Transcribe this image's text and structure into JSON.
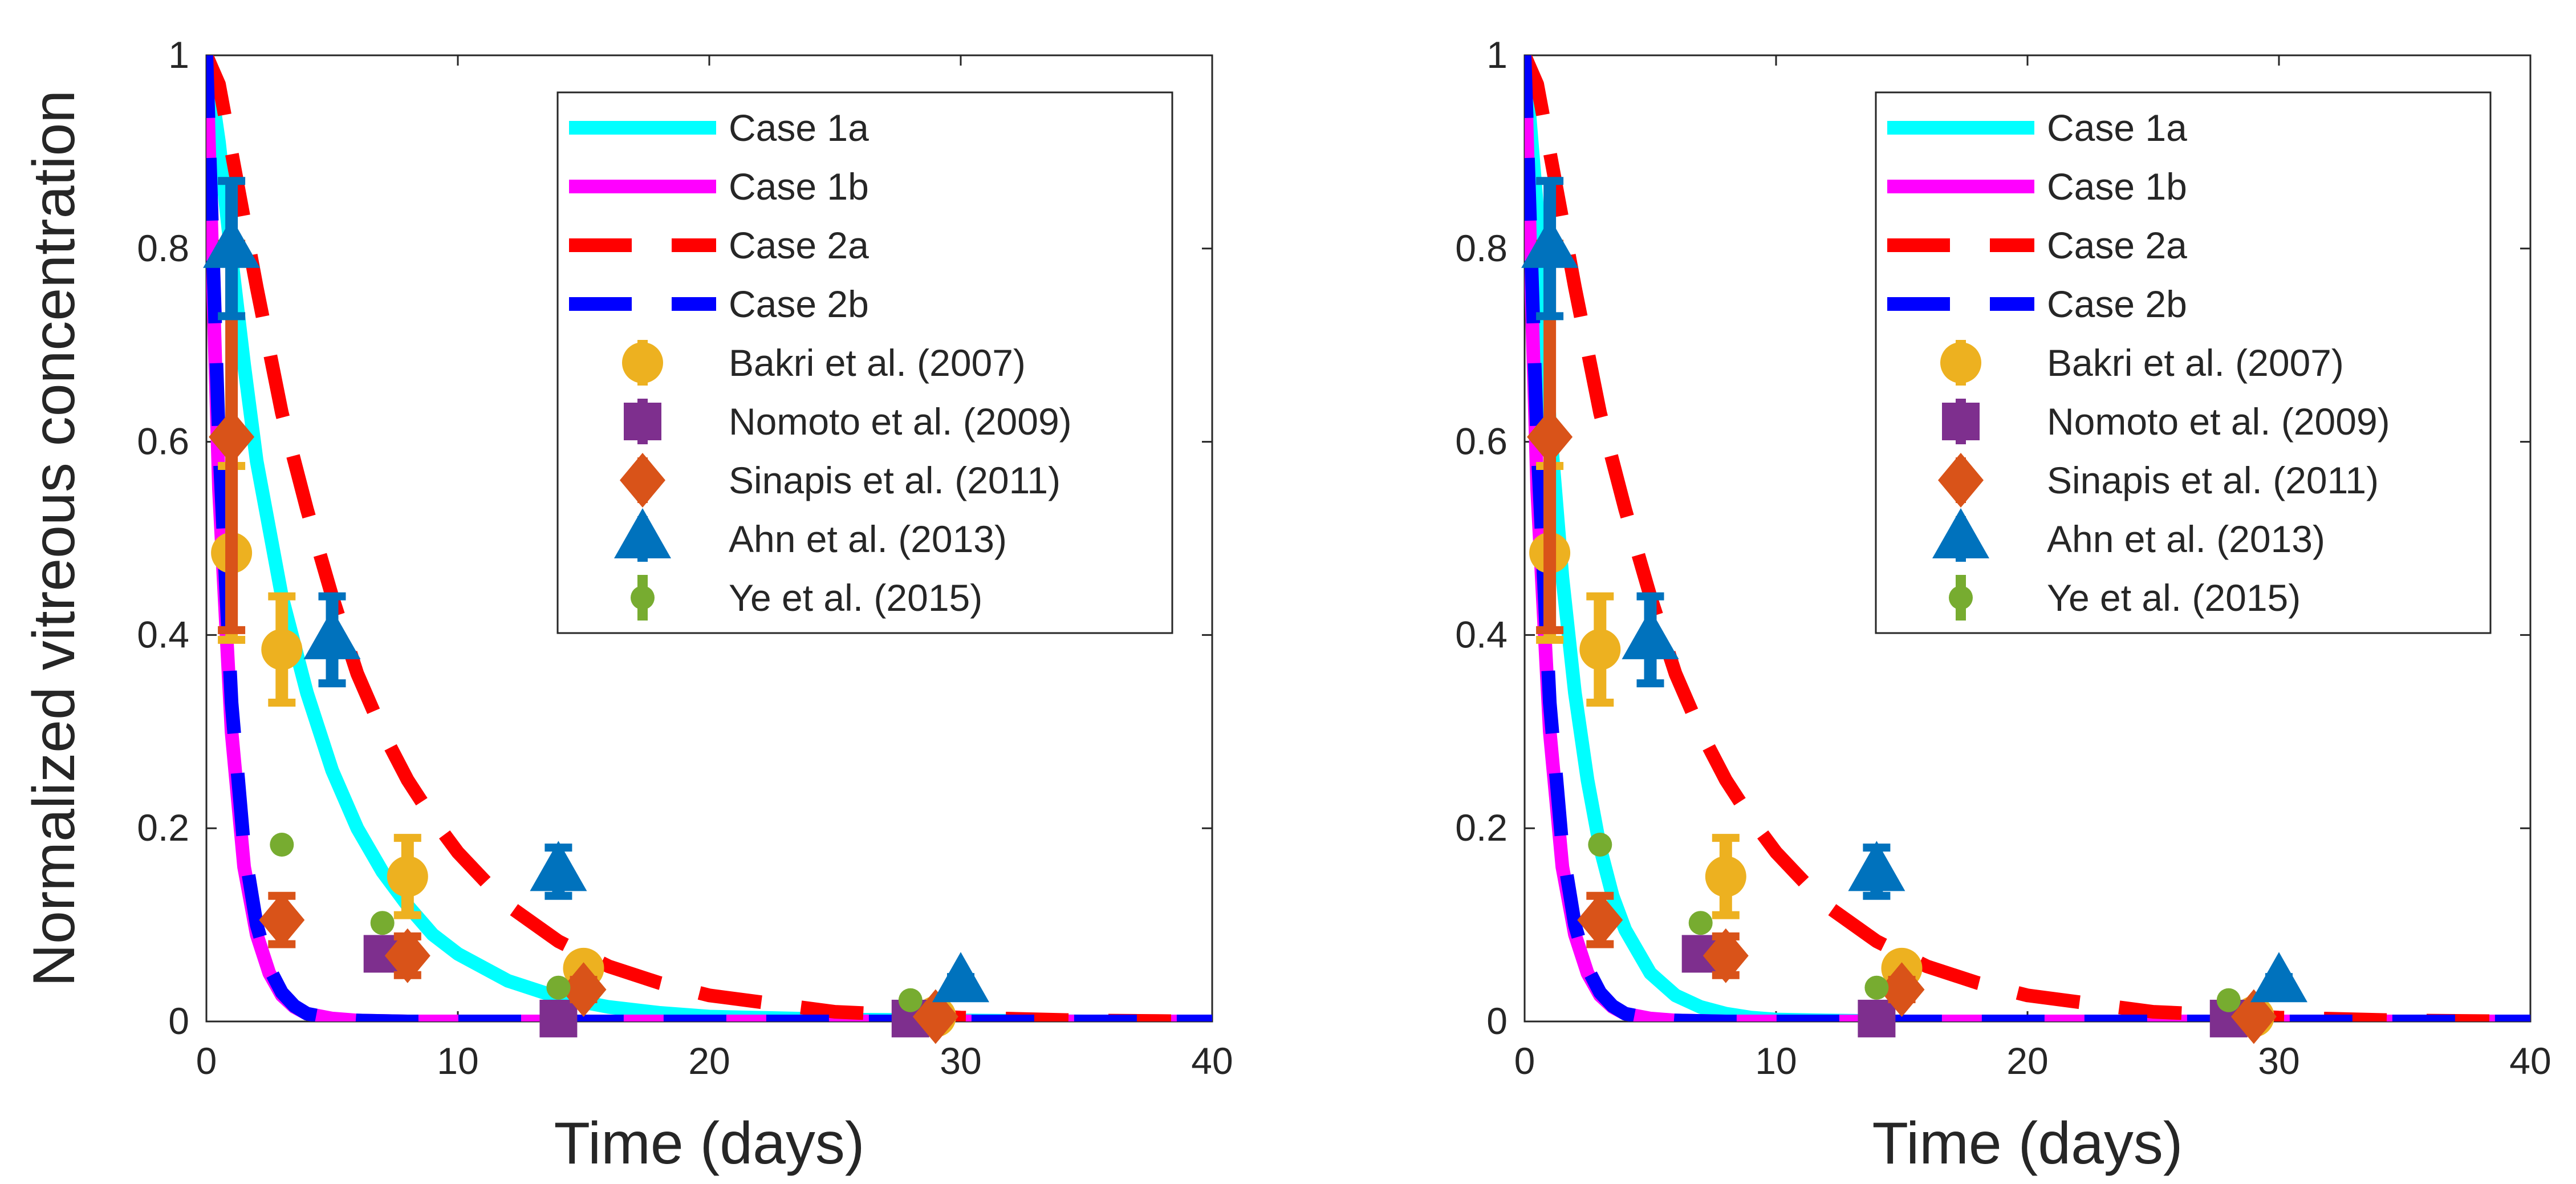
{
  "chart_data": [
    {
      "type": "line",
      "title": "",
      "xlabel": "Time (days)",
      "ylabel": "Normalized vitreous concentration",
      "xlim": [
        0,
        40
      ],
      "ylim": [
        0,
        1
      ],
      "xticks": [
        0,
        10,
        20,
        30,
        40
      ],
      "yticks": [
        0,
        0.2,
        0.4,
        0.6,
        0.8,
        1
      ],
      "xtick_labels": [
        "0",
        "10",
        "20",
        "30",
        "40"
      ],
      "ytick_labels": [
        "0",
        "0.2",
        "0.4",
        "0.6",
        "0.8",
        "1"
      ],
      "grid": false,
      "legend_position": "top-right",
      "series": [
        {
          "name": "Case 1a",
          "style": "solid",
          "color": "#00FFFF",
          "x": [
            0,
            0.5,
            1,
            1.5,
            2,
            3,
            4,
            5,
            6,
            7,
            8,
            9,
            10,
            12,
            14,
            16,
            18,
            20,
            25,
            30,
            35,
            40
          ],
          "y": [
            1,
            0.91,
            0.79,
            0.68,
            0.58,
            0.44,
            0.34,
            0.26,
            0.2,
            0.155,
            0.12,
            0.09,
            0.07,
            0.042,
            0.025,
            0.015,
            0.009,
            0.005,
            0.002,
            0.001,
            0,
            0
          ]
        },
        {
          "name": "Case 1b",
          "style": "solid",
          "color": "#FF00FF",
          "x": [
            0,
            0.5,
            1,
            1.5,
            2,
            2.5,
            3,
            3.5,
            4,
            5,
            6,
            8,
            10,
            15,
            20,
            30,
            40
          ],
          "y": [
            1,
            0.55,
            0.3,
            0.16,
            0.09,
            0.05,
            0.027,
            0.015,
            0.008,
            0.003,
            0.001,
            0,
            0,
            0,
            0,
            0,
            0
          ]
        },
        {
          "name": "Case 2a",
          "style": "dashed",
          "color": "#FF0000",
          "x": [
            0,
            0.5,
            1,
            2,
            3,
            4,
            5,
            6,
            7,
            8,
            9,
            10,
            12,
            14,
            16,
            18,
            20,
            25,
            30,
            35,
            40
          ],
          "y": [
            1,
            0.97,
            0.9,
            0.76,
            0.63,
            0.53,
            0.44,
            0.36,
            0.3,
            0.25,
            0.21,
            0.175,
            0.12,
            0.083,
            0.057,
            0.04,
            0.027,
            0.01,
            0.004,
            0.001,
            0
          ]
        },
        {
          "name": "Case 2b",
          "style": "dashed",
          "color": "#0000FF",
          "x": [
            0,
            0.5,
            1,
            1.5,
            2,
            2.5,
            3,
            3.5,
            4,
            5,
            6,
            8,
            10,
            15,
            20,
            30,
            40
          ],
          "y": [
            1,
            0.6,
            0.33,
            0.18,
            0.1,
            0.055,
            0.03,
            0.016,
            0.008,
            0.003,
            0.001,
            0,
            0,
            0,
            0,
            0,
            0
          ]
        },
        {
          "name": "Bakri et al. (2007)",
          "style": "marker",
          "marker": "circle",
          "color": "#EDB120",
          "x": [
            1,
            3,
            8,
            15,
            29
          ],
          "y": [
            0.485,
            0.385,
            0.15,
            0.055,
            0.005
          ],
          "err": [
            0.09,
            0.055,
            0.04,
            0.012,
            0.003
          ]
        },
        {
          "name": "Nomoto et al. (2009)",
          "style": "marker",
          "marker": "square",
          "color": "#7E2F8E",
          "x": [
            7,
            14,
            28
          ],
          "y": [
            0.07,
            0.003,
            0.003
          ],
          "err": [
            0.015,
            0.003,
            0.002
          ]
        },
        {
          "name": "Sinapis et al. (2011)",
          "style": "marker",
          "marker": "diamond",
          "color": "#D95319",
          "x": [
            1,
            3,
            8,
            15,
            29
          ],
          "y": [
            0.605,
            0.105,
            0.068,
            0.033,
            0.005
          ],
          "err": [
            0.2,
            0.025,
            0.02,
            0.01,
            0.004
          ]
        },
        {
          "name": "Ahn et al. (2013)",
          "style": "marker",
          "marker": "triangle",
          "color": "#0072BD",
          "x": [
            1,
            5,
            14,
            30
          ],
          "y": [
            0.8,
            0.395,
            0.155,
            0.04
          ],
          "err": [
            0.07,
            0.045,
            0.025,
            0.006
          ]
        },
        {
          "name": "Ye et al. (2015)",
          "style": "marker",
          "marker": "dot",
          "color": "#77AC30",
          "x": [
            3,
            7,
            14,
            28
          ],
          "y": [
            0.183,
            0.102,
            0.035,
            0.022
          ],
          "err": [
            0,
            0,
            0,
            0
          ]
        }
      ]
    },
    {
      "type": "line",
      "title": "",
      "xlabel": "Time (days)",
      "ylabel": "",
      "xlim": [
        0,
        40
      ],
      "ylim": [
        0,
        1
      ],
      "xticks": [
        0,
        10,
        20,
        30,
        40
      ],
      "yticks": [
        0,
        0.2,
        0.4,
        0.6,
        0.8,
        1
      ],
      "xtick_labels": [
        "0",
        "10",
        "20",
        "30",
        "40"
      ],
      "ytick_labels": [
        "0",
        "0.2",
        "0.4",
        "0.6",
        "0.8",
        "1"
      ],
      "grid": false,
      "legend_position": "top-right",
      "series": [
        {
          "name": "Case 1a",
          "style": "solid",
          "color": "#00FFFF",
          "x": [
            0,
            0.5,
            1,
            1.5,
            2,
            2.5,
            3,
            3.5,
            4,
            5,
            6,
            7,
            8,
            9,
            10,
            12,
            15,
            20,
            30,
            40
          ],
          "y": [
            1,
            0.84,
            0.62,
            0.46,
            0.34,
            0.25,
            0.18,
            0.13,
            0.095,
            0.05,
            0.027,
            0.015,
            0.008,
            0.004,
            0.002,
            0.001,
            0,
            0,
            0,
            0
          ]
        },
        {
          "name": "Case 1b",
          "style": "solid",
          "color": "#FF00FF",
          "x": [
            0,
            0.5,
            1,
            1.5,
            2,
            2.5,
            3,
            3.5,
            4,
            5,
            6,
            8,
            10,
            15,
            20,
            30,
            40
          ],
          "y": [
            1,
            0.55,
            0.3,
            0.16,
            0.09,
            0.05,
            0.027,
            0.015,
            0.008,
            0.003,
            0.001,
            0,
            0,
            0,
            0,
            0,
            0
          ]
        },
        {
          "name": "Case 2a",
          "style": "dashed",
          "color": "#FF0000",
          "x": [
            0,
            0.5,
            1,
            2,
            3,
            4,
            5,
            6,
            7,
            8,
            9,
            10,
            12,
            14,
            16,
            18,
            20,
            25,
            30,
            35,
            40
          ],
          "y": [
            1,
            0.97,
            0.9,
            0.76,
            0.63,
            0.53,
            0.44,
            0.36,
            0.3,
            0.25,
            0.21,
            0.175,
            0.12,
            0.083,
            0.057,
            0.04,
            0.027,
            0.01,
            0.004,
            0.001,
            0
          ]
        },
        {
          "name": "Case 2b",
          "style": "dashed",
          "color": "#0000FF",
          "x": [
            0,
            0.5,
            1,
            1.5,
            2,
            2.5,
            3,
            3.5,
            4,
            5,
            6,
            8,
            10,
            15,
            20,
            30,
            40
          ],
          "y": [
            1,
            0.6,
            0.33,
            0.18,
            0.1,
            0.055,
            0.03,
            0.016,
            0.008,
            0.003,
            0.001,
            0,
            0,
            0,
            0,
            0,
            0
          ]
        },
        {
          "name": "Bakri et al. (2007)",
          "style": "marker",
          "marker": "circle",
          "color": "#EDB120",
          "x": [
            1,
            3,
            8,
            15,
            29
          ],
          "y": [
            0.485,
            0.385,
            0.15,
            0.055,
            0.005
          ],
          "err": [
            0.09,
            0.055,
            0.04,
            0.012,
            0.003
          ]
        },
        {
          "name": "Nomoto et al. (2009)",
          "style": "marker",
          "marker": "square",
          "color": "#7E2F8E",
          "x": [
            7,
            14,
            28
          ],
          "y": [
            0.07,
            0.003,
            0.003
          ],
          "err": [
            0.015,
            0.003,
            0.002
          ]
        },
        {
          "name": "Sinapis et al. (2011)",
          "style": "marker",
          "marker": "diamond",
          "color": "#D95319",
          "x": [
            1,
            3,
            8,
            15,
            29
          ],
          "y": [
            0.605,
            0.105,
            0.068,
            0.033,
            0.005
          ],
          "err": [
            0.2,
            0.025,
            0.02,
            0.01,
            0.004
          ]
        },
        {
          "name": "Ahn et al. (2013)",
          "style": "marker",
          "marker": "triangle",
          "color": "#0072BD",
          "x": [
            1,
            5,
            14,
            30
          ],
          "y": [
            0.8,
            0.395,
            0.155,
            0.04
          ],
          "err": [
            0.07,
            0.045,
            0.025,
            0.006
          ]
        },
        {
          "name": "Ye et al. (2015)",
          "style": "marker",
          "marker": "dot",
          "color": "#77AC30",
          "x": [
            3,
            7,
            14,
            28
          ],
          "y": [
            0.183,
            0.102,
            0.035,
            0.022
          ],
          "err": [
            0,
            0,
            0,
            0
          ]
        }
      ]
    }
  ]
}
